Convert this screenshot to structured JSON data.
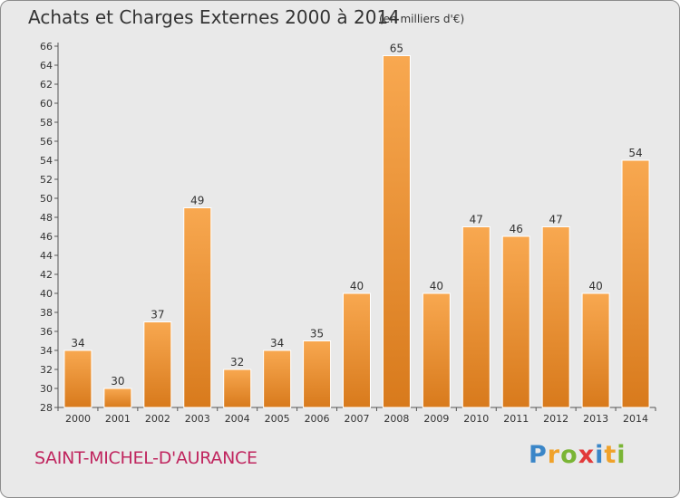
{
  "header": {
    "title": "Achats et Charges Externes 2000 à 2014",
    "subtitle": "(en milliers d'€)"
  },
  "footer": {
    "commune": "SAINT-MICHEL-D'AURANCE",
    "logo_text": "Proxiti"
  },
  "colors": {
    "bar_light": "#f8a850",
    "bar_dark": "#d87a1c",
    "title": "#333333",
    "commune": "#c0265f",
    "background": "#e9e9e9"
  },
  "chart_data": {
    "type": "bar",
    "title": "Achats et Charges Externes 2000 à 2014",
    "subtitle": "(en milliers d'€)",
    "xlabel": "",
    "ylabel": "",
    "categories": [
      "2000",
      "2001",
      "2002",
      "2003",
      "2004",
      "2005",
      "2006",
      "2007",
      "2008",
      "2009",
      "2010",
      "2011",
      "2012",
      "2013",
      "2014"
    ],
    "values": [
      34,
      30,
      37,
      49,
      32,
      34,
      35,
      40,
      65,
      40,
      47,
      46,
      47,
      40,
      54
    ],
    "ylim": [
      28,
      66
    ],
    "yticks": [
      28,
      30,
      32,
      34,
      36,
      38,
      40,
      42,
      44,
      46,
      48,
      50,
      52,
      54,
      56,
      58,
      60,
      62,
      64,
      66
    ],
    "grid": false,
    "legend": "none",
    "data_labels": true
  }
}
